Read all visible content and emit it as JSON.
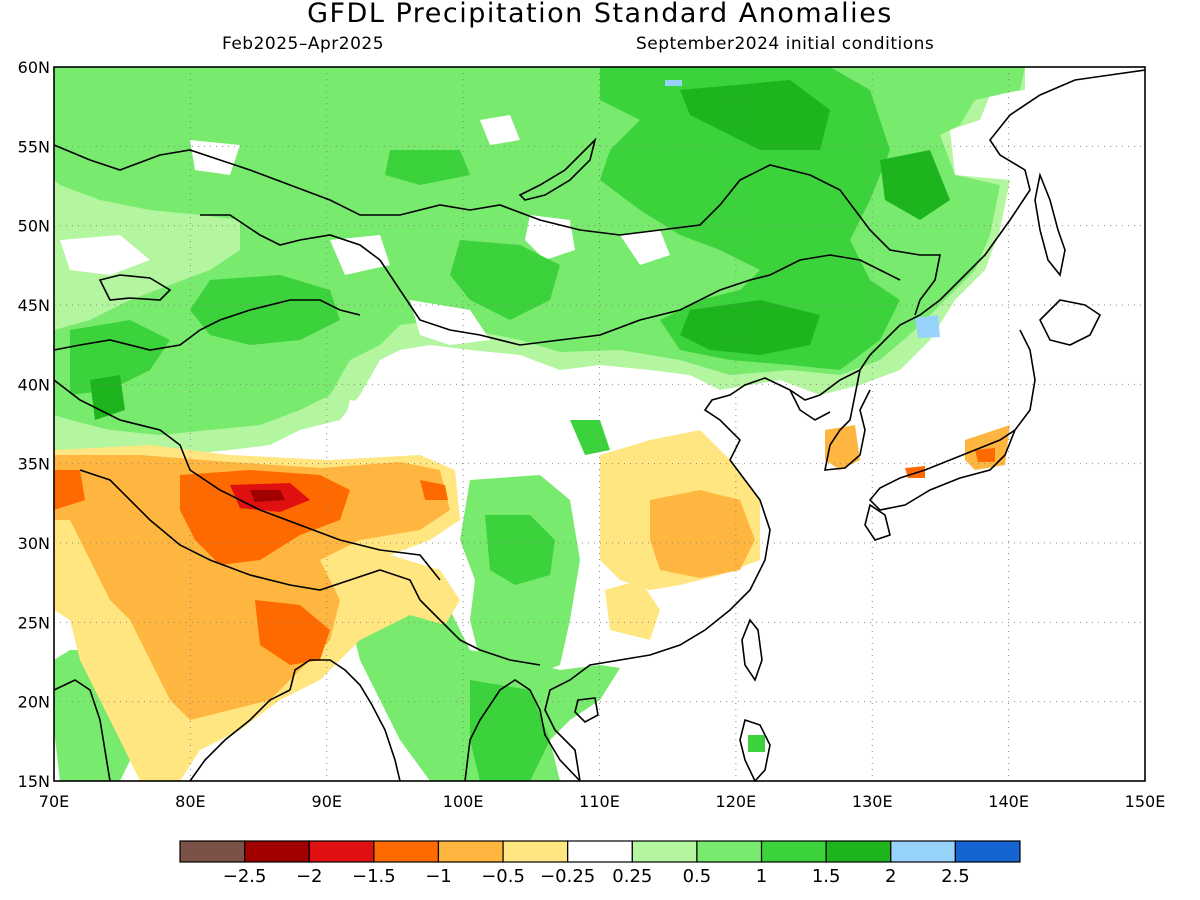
{
  "title": "GFDL Precipitation Standard Anomalies",
  "subtitle_left": "Feb2025–Apr2025",
  "subtitle_right": "September2024 initial conditions",
  "lat_labels": [
    "60N",
    "55N",
    "50N",
    "45N",
    "40N",
    "35N",
    "30N",
    "25N",
    "20N",
    "15N"
  ],
  "lon_labels": [
    "70E",
    "80E",
    "90E",
    "100E",
    "110E",
    "120E",
    "130E",
    "140E",
    "150E"
  ],
  "extent": {
    "lon_min": 70,
    "lon_max": 150,
    "lat_min": 15,
    "lat_max": 60
  },
  "colorbar": {
    "colors": [
      "#7a5247",
      "#a00000",
      "#e01010",
      "#ff6a00",
      "#ffb640",
      "#ffe680",
      "#ffffff",
      "#b4f5a0",
      "#78ea6e",
      "#3cd23c",
      "#1eb41e",
      "#96d2fa",
      "#1464d2"
    ],
    "labels": [
      "−2.5",
      "−2",
      "−1.5",
      "−1",
      "−0.5",
      "−0.25",
      "0.25",
      "0.5",
      "1",
      "1.5",
      "2",
      "2.5"
    ]
  },
  "colors": {
    "frame": "#000000",
    "grid": "#888888",
    "coast": "#000000"
  }
}
